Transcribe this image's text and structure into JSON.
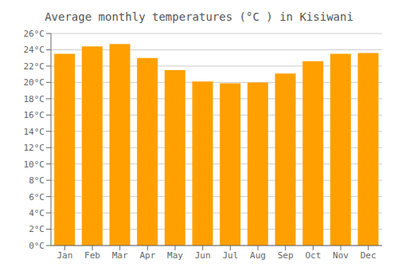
{
  "chart_data": {
    "type": "bar",
    "title": "Average monthly temperatures (°C ) in Kisiwani",
    "categories": [
      "Jan",
      "Feb",
      "Mar",
      "Apr",
      "May",
      "Jun",
      "Jul",
      "Aug",
      "Sep",
      "Oct",
      "Nov",
      "Dec"
    ],
    "values": [
      23.5,
      24.4,
      24.7,
      23.0,
      21.5,
      20.1,
      19.9,
      20.0,
      21.1,
      22.6,
      23.5,
      23.6
    ],
    "color": "#FFA000",
    "ylim": [
      0,
      26
    ],
    "yticks": [
      {
        "value": 0,
        "label": "0°C"
      },
      {
        "value": 2,
        "label": "2°C"
      },
      {
        "value": 4,
        "label": "4°C"
      },
      {
        "value": 6,
        "label": "6°C"
      },
      {
        "value": 8,
        "label": "8°C"
      },
      {
        "value": 10,
        "label": "10°C"
      },
      {
        "value": 12,
        "label": "12°C"
      },
      {
        "value": 14,
        "label": "14°C"
      },
      {
        "value": 16,
        "label": "16°C"
      },
      {
        "value": 18,
        "label": "18°C"
      },
      {
        "value": 20,
        "label": "20°C"
      },
      {
        "value": 22,
        "label": "22°C"
      },
      {
        "value": 24,
        "label": "24°C"
      },
      {
        "value": 26,
        "label": "26°C"
      }
    ],
    "grid": true
  }
}
